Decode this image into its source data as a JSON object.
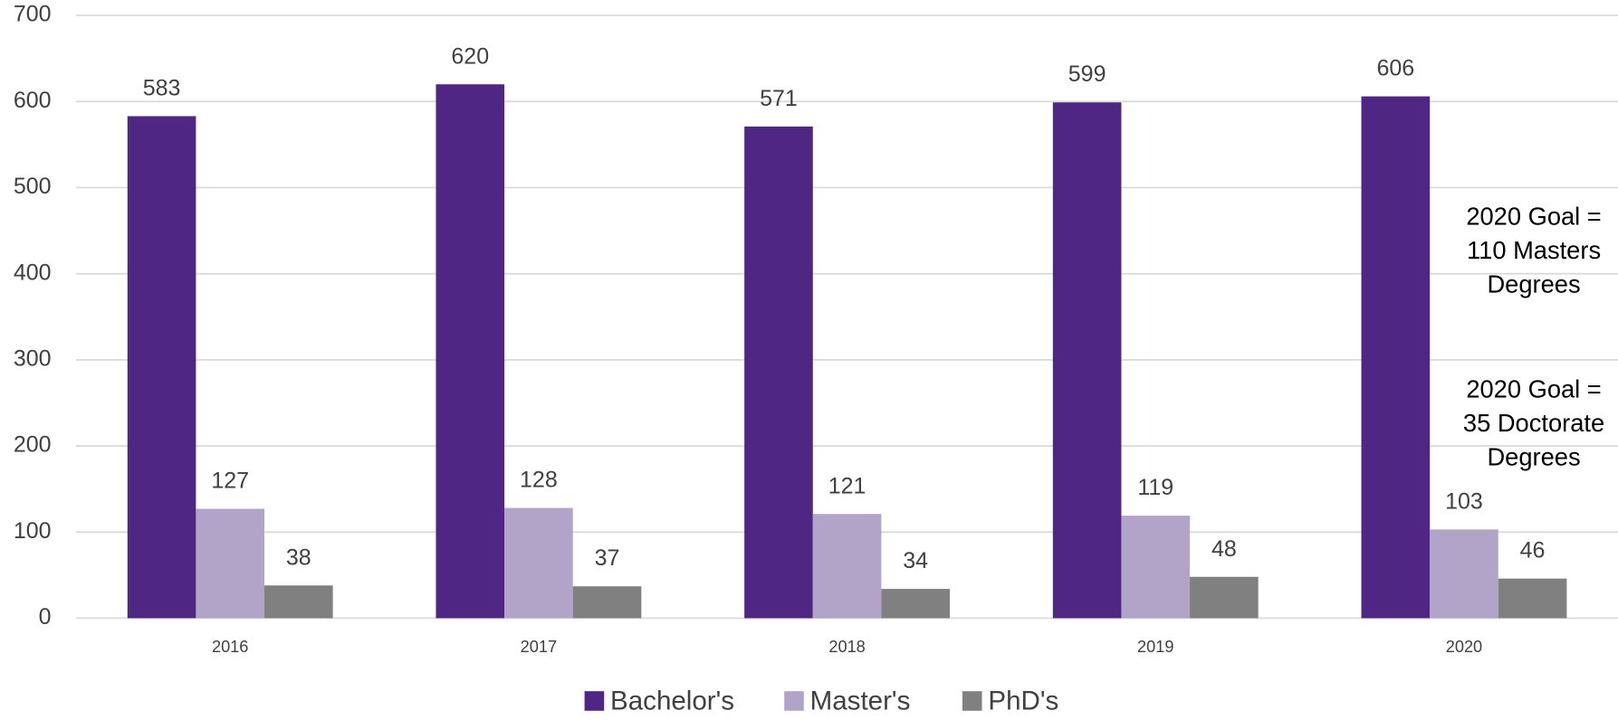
{
  "chart_data": {
    "type": "bar",
    "categories": [
      "2016",
      "2017",
      "2018",
      "2019",
      "2020"
    ],
    "series": [
      {
        "name": "Bachelor's",
        "color": "#4f2683",
        "values": [
          583,
          620,
          571,
          599,
          606
        ]
      },
      {
        "name": "Master's",
        "color": "#b2a3c9",
        "values": [
          127,
          128,
          121,
          119,
          103
        ]
      },
      {
        "name": "PhD's",
        "color": "#808080",
        "values": [
          38,
          37,
          34,
          48,
          46
        ]
      }
    ],
    "ylim": [
      0,
      700
    ],
    "yticks": [
      0,
      100,
      200,
      300,
      400,
      500,
      600,
      700
    ],
    "grid": true,
    "legend": "bottom",
    "annotations": [
      {
        "lines": [
          "2020 Goal =",
          "110 Masters",
          "Degrees"
        ]
      },
      {
        "lines": [
          "2020 Goal =",
          "35 Doctorate",
          "Degrees"
        ]
      }
    ]
  }
}
